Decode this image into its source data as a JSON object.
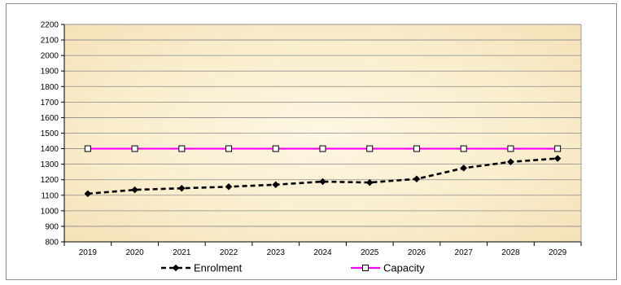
{
  "chart_data": {
    "type": "line",
    "title": "",
    "xlabel": "",
    "ylabel": "",
    "categories": [
      "2019",
      "2020",
      "2021",
      "2022",
      "2023",
      "2024",
      "2025",
      "2026",
      "2027",
      "2028",
      "2029"
    ],
    "ylim": [
      800,
      2200
    ],
    "ytick_step": 100,
    "grid": true,
    "legend_position": "bottom",
    "series": [
      {
        "name": "Enrolment",
        "values": [
          1110,
          1135,
          1145,
          1155,
          1168,
          1188,
          1182,
          1205,
          1275,
          1315,
          1337
        ],
        "color": "#000000",
        "marker": "diamond",
        "line_style": "dashed"
      },
      {
        "name": "Capacity",
        "values": [
          1400,
          1400,
          1400,
          1400,
          1400,
          1400,
          1400,
          1400,
          1400,
          1400,
          1400
        ],
        "color": "#ff00ff",
        "marker": "square",
        "line_style": "solid"
      }
    ],
    "plot_background": "#fbf1d6"
  }
}
